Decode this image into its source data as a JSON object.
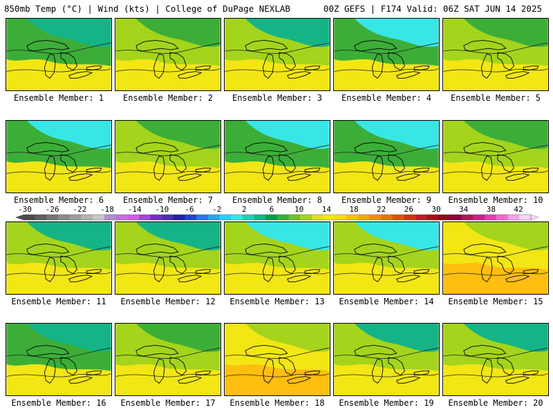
{
  "header": {
    "left": "850mb Temp (°C) | Wind (kts) | College of DuPage NEXLAB",
    "right": "00Z GEFS | F174 Valid: 06Z SAT JUN 14 2025"
  },
  "members": [
    {
      "label": "Ensemble Member: 1",
      "palette": [
        18,
        10,
        6
      ]
    },
    {
      "label": "Ensemble Member: 2",
      "palette": [
        18,
        14,
        10
      ]
    },
    {
      "label": "Ensemble Member: 3",
      "palette": [
        18,
        14,
        6
      ]
    },
    {
      "label": "Ensemble Member: 4",
      "palette": [
        18,
        10,
        2
      ]
    },
    {
      "label": "Ensemble Member: 5",
      "palette": [
        18,
        14,
        10
      ]
    },
    {
      "label": "Ensemble Member: 6",
      "palette": [
        18,
        10,
        2
      ]
    },
    {
      "label": "Ensemble Member: 7",
      "palette": [
        18,
        14,
        10
      ]
    },
    {
      "label": "Ensemble Member: 8",
      "palette": [
        18,
        10,
        2
      ]
    },
    {
      "label": "Ensemble Member: 9",
      "palette": [
        18,
        10,
        2
      ]
    },
    {
      "label": "Ensemble Member: 10",
      "palette": [
        18,
        14,
        10
      ]
    },
    {
      "label": "Ensemble Member: 11",
      "palette": [
        18,
        14,
        6
      ]
    },
    {
      "label": "Ensemble Member: 12",
      "palette": [
        18,
        14,
        6
      ]
    },
    {
      "label": "Ensemble Member: 13",
      "palette": [
        18,
        14,
        2
      ]
    },
    {
      "label": "Ensemble Member: 14",
      "palette": [
        18,
        14,
        2
      ]
    },
    {
      "label": "Ensemble Member: 15",
      "palette": [
        22,
        18,
        14
      ]
    },
    {
      "label": "Ensemble Member: 16",
      "palette": [
        18,
        10,
        6
      ]
    },
    {
      "label": "Ensemble Member: 17",
      "palette": [
        18,
        14,
        10
      ]
    },
    {
      "label": "Ensemble Member: 18",
      "palette": [
        22,
        18,
        14
      ]
    },
    {
      "label": "Ensemble Member: 19",
      "palette": [
        18,
        14,
        6
      ]
    },
    {
      "label": "Ensemble Member: 20",
      "palette": [
        18,
        14,
        6
      ]
    }
  ],
  "colorbar": {
    "tick_labels": [
      "-30",
      "-26",
      "-22",
      "-18",
      "-14",
      "-10",
      "-6",
      "-2",
      "2",
      "6",
      "10",
      "14",
      "18",
      "22",
      "26",
      "30",
      "34",
      "38",
      "42"
    ],
    "colors": [
      "#4a4a4a",
      "#5f5f5f",
      "#747474",
      "#8a8a8a",
      "#9e9e9e",
      "#b4b4b4",
      "#c8c8c8",
      "#b18fce",
      "#c86ee0",
      "#d25ee8",
      "#a348d6",
      "#7a2cc4",
      "#4b2db0",
      "#2222a8",
      "#2244d4",
      "#2a78ee",
      "#2aa4f2",
      "#2ad0f8",
      "#38e6e6",
      "#22d0b2",
      "#14b487",
      "#0a9c48",
      "#3cae38",
      "#6cc428",
      "#a4d41c",
      "#dce21a",
      "#f2e614",
      "#ffd814",
      "#ffbe10",
      "#ffa40e",
      "#ff8a0c",
      "#f46e0a",
      "#e84e0a",
      "#e02e12",
      "#d01422",
      "#b00a18",
      "#8e0a10",
      "#8e0a2a",
      "#b4145a",
      "#d21e8a",
      "#e63cb4",
      "#f06ad2",
      "#f8a0e6",
      "#fcd2f4"
    ]
  }
}
